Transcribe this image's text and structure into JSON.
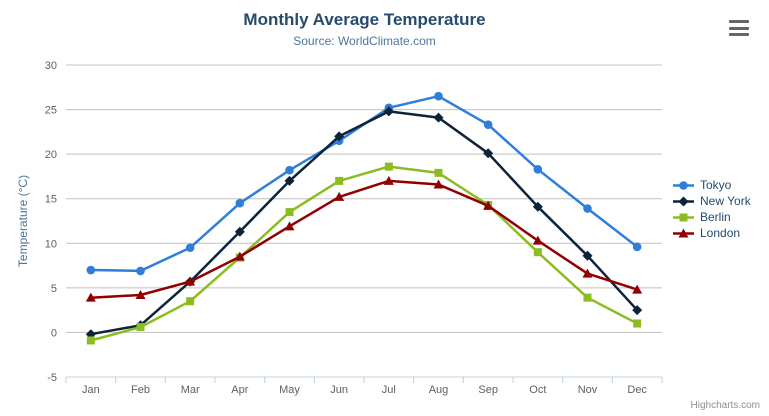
{
  "title": "Monthly Average Temperature",
  "subtitle": "Source: WorldClimate.com",
  "credits": "Highcharts.com",
  "export_menu_icon": "hamburger-icon",
  "colors": {
    "title": "#274b6d",
    "subtitle": "#4d759e",
    "axis_label": "#606060",
    "axis_title": "#4d759e",
    "grid": "#c0c0c0",
    "axis_line": "#c0d0e0",
    "legend_text": "#274b6d",
    "credits": "#909090"
  },
  "chart_data": {
    "type": "line",
    "title": "Monthly Average Temperature",
    "subtitle": "Source: WorldClimate.com",
    "xlabel": "",
    "ylabel": "Temperature (°C)",
    "ylim": [
      -5,
      30
    ],
    "ytick_interval": 5,
    "grid": true,
    "legend_position": "right",
    "categories": [
      "Jan",
      "Feb",
      "Mar",
      "Apr",
      "May",
      "Jun",
      "Jul",
      "Aug",
      "Sep",
      "Oct",
      "Nov",
      "Dec"
    ],
    "series": [
      {
        "name": "Tokyo",
        "color": "#2f7ed8",
        "marker": "circle",
        "values": [
          7.0,
          6.9,
          9.5,
          14.5,
          18.2,
          21.5,
          25.2,
          26.5,
          23.3,
          18.3,
          13.9,
          9.6
        ]
      },
      {
        "name": "New York",
        "color": "#0d233a",
        "marker": "diamond",
        "values": [
          -0.2,
          0.8,
          5.7,
          11.3,
          17.0,
          22.0,
          24.8,
          24.1,
          20.1,
          14.1,
          8.6,
          2.5
        ]
      },
      {
        "name": "Berlin",
        "color": "#8bbc21",
        "marker": "square",
        "values": [
          -0.9,
          0.6,
          3.5,
          8.4,
          13.5,
          17.0,
          18.6,
          17.9,
          14.3,
          9.0,
          3.9,
          1.0
        ]
      },
      {
        "name": "London",
        "color": "#910000",
        "marker": "triangle",
        "values": [
          3.9,
          4.2,
          5.7,
          8.5,
          11.9,
          15.2,
          17.0,
          16.6,
          14.2,
          10.3,
          6.6,
          4.8
        ]
      }
    ]
  }
}
